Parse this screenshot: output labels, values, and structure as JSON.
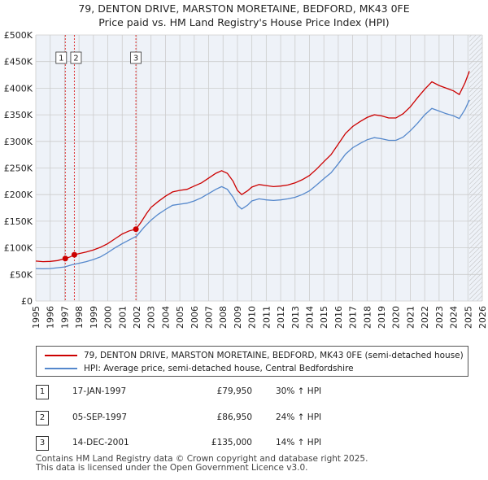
{
  "title": {
    "line1": "79, DENTON DRIVE, MARSTON MORETAINE, BEDFORD, MK43 0FE",
    "line2": "Price paid vs. HM Land Registry's House Price Index (HPI)"
  },
  "colors": {
    "property": "#cc0000",
    "hpi": "#5588cc",
    "grid": "#cccccc",
    "plot_bg": "#eef2f8",
    "marker_line": "#dd3333"
  },
  "chart_data": {
    "type": "line",
    "xlim": [
      1995,
      2026
    ],
    "ylim": [
      0,
      500000
    ],
    "x_ticks": [
      1995,
      1996,
      1997,
      1998,
      1999,
      2000,
      2001,
      2002,
      2003,
      2004,
      2005,
      2006,
      2007,
      2008,
      2009,
      2010,
      2011,
      2012,
      2013,
      2014,
      2015,
      2016,
      2017,
      2018,
      2019,
      2020,
      2021,
      2022,
      2023,
      2024,
      2025,
      2026
    ],
    "y_ticks": [
      {
        "value": 0,
        "label": "£0"
      },
      {
        "value": 50000,
        "label": "£50K"
      },
      {
        "value": 100000,
        "label": "£100K"
      },
      {
        "value": 150000,
        "label": "£150K"
      },
      {
        "value": 200000,
        "label": "£200K"
      },
      {
        "value": 250000,
        "label": "£250K"
      },
      {
        "value": 300000,
        "label": "£300K"
      },
      {
        "value": 350000,
        "label": "£350K"
      },
      {
        "value": 400000,
        "label": "£400K"
      },
      {
        "value": 450000,
        "label": "£450K"
      },
      {
        "value": 500000,
        "label": "£500K"
      }
    ],
    "grid": true,
    "hatch_after": 2025.1,
    "series": [
      {
        "name": "79, DENTON DRIVE, MARSTON MORETAINE, BEDFORD, MK43 0FE (semi-detached house)",
        "color": "#cc0000",
        "points": [
          [
            1995.0,
            75000
          ],
          [
            1995.5,
            74000
          ],
          [
            1996.0,
            74500
          ],
          [
            1996.5,
            76000
          ],
          [
            1997.05,
            79950
          ],
          [
            1997.4,
            83000
          ],
          [
            1997.68,
            86950
          ],
          [
            1998.0,
            89000
          ],
          [
            1998.5,
            92000
          ],
          [
            1999.0,
            96000
          ],
          [
            1999.5,
            101000
          ],
          [
            2000.0,
            108000
          ],
          [
            2000.5,
            117000
          ],
          [
            2001.0,
            126000
          ],
          [
            2001.5,
            132000
          ],
          [
            2001.95,
            135000
          ],
          [
            2002.3,
            148000
          ],
          [
            2002.7,
            165000
          ],
          [
            2003.0,
            176000
          ],
          [
            2003.5,
            187000
          ],
          [
            2004.0,
            197000
          ],
          [
            2004.5,
            205000
          ],
          [
            2005.0,
            208000
          ],
          [
            2005.5,
            210000
          ],
          [
            2006.0,
            216000
          ],
          [
            2006.5,
            222000
          ],
          [
            2007.0,
            231000
          ],
          [
            2007.5,
            240000
          ],
          [
            2007.9,
            245000
          ],
          [
            2008.3,
            240000
          ],
          [
            2008.7,
            225000
          ],
          [
            2009.0,
            208000
          ],
          [
            2009.3,
            200000
          ],
          [
            2009.7,
            207000
          ],
          [
            2010.0,
            214000
          ],
          [
            2010.5,
            219000
          ],
          [
            2011.0,
            217000
          ],
          [
            2011.5,
            215000
          ],
          [
            2012.0,
            216000
          ],
          [
            2012.5,
            218000
          ],
          [
            2013.0,
            222000
          ],
          [
            2013.5,
            228000
          ],
          [
            2014.0,
            236000
          ],
          [
            2014.5,
            248000
          ],
          [
            2015.0,
            262000
          ],
          [
            2015.5,
            275000
          ],
          [
            2016.0,
            295000
          ],
          [
            2016.5,
            315000
          ],
          [
            2017.0,
            328000
          ],
          [
            2017.5,
            337000
          ],
          [
            2018.0,
            345000
          ],
          [
            2018.5,
            350000
          ],
          [
            2019.0,
            348000
          ],
          [
            2019.5,
            344000
          ],
          [
            2020.0,
            344000
          ],
          [
            2020.5,
            352000
          ],
          [
            2021.0,
            365000
          ],
          [
            2021.5,
            382000
          ],
          [
            2022.0,
            398000
          ],
          [
            2022.5,
            412000
          ],
          [
            2023.0,
            405000
          ],
          [
            2023.5,
            400000
          ],
          [
            2024.0,
            395000
          ],
          [
            2024.4,
            388000
          ],
          [
            2024.8,
            410000
          ],
          [
            2025.1,
            432000
          ]
        ]
      },
      {
        "name": "HPI: Average price, semi-detached house, Central Bedfordshire",
        "color": "#5588cc",
        "points": [
          [
            1995.0,
            61000
          ],
          [
            1995.5,
            60500
          ],
          [
            1996.0,
            61000
          ],
          [
            1996.5,
            62500
          ],
          [
            1997.0,
            64000
          ],
          [
            1997.5,
            68000
          ],
          [
            1998.0,
            71000
          ],
          [
            1998.5,
            74000
          ],
          [
            1999.0,
            78000
          ],
          [
            1999.5,
            83000
          ],
          [
            2000.0,
            91000
          ],
          [
            2000.5,
            100000
          ],
          [
            2001.0,
            108000
          ],
          [
            2001.5,
            115000
          ],
          [
            2002.0,
            122000
          ],
          [
            2002.5,
            138000
          ],
          [
            2003.0,
            152000
          ],
          [
            2003.5,
            163000
          ],
          [
            2004.0,
            172000
          ],
          [
            2004.5,
            180000
          ],
          [
            2005.0,
            182000
          ],
          [
            2005.5,
            184000
          ],
          [
            2006.0,
            188000
          ],
          [
            2006.5,
            194000
          ],
          [
            2007.0,
            202000
          ],
          [
            2007.5,
            210000
          ],
          [
            2007.9,
            215000
          ],
          [
            2008.3,
            210000
          ],
          [
            2008.7,
            195000
          ],
          [
            2009.0,
            180000
          ],
          [
            2009.3,
            173000
          ],
          [
            2009.7,
            180000
          ],
          [
            2010.0,
            188000
          ],
          [
            2010.5,
            192000
          ],
          [
            2011.0,
            190000
          ],
          [
            2011.5,
            189000
          ],
          [
            2012.0,
            190000
          ],
          [
            2012.5,
            192000
          ],
          [
            2013.0,
            195000
          ],
          [
            2013.5,
            200000
          ],
          [
            2014.0,
            207000
          ],
          [
            2014.5,
            218000
          ],
          [
            2015.0,
            230000
          ],
          [
            2015.5,
            241000
          ],
          [
            2016.0,
            258000
          ],
          [
            2016.5,
            276000
          ],
          [
            2017.0,
            288000
          ],
          [
            2017.5,
            296000
          ],
          [
            2018.0,
            303000
          ],
          [
            2018.5,
            307000
          ],
          [
            2019.0,
            305000
          ],
          [
            2019.5,
            302000
          ],
          [
            2020.0,
            302000
          ],
          [
            2020.5,
            308000
          ],
          [
            2021.0,
            320000
          ],
          [
            2021.5,
            334000
          ],
          [
            2022.0,
            350000
          ],
          [
            2022.5,
            362000
          ],
          [
            2023.0,
            357000
          ],
          [
            2023.5,
            352000
          ],
          [
            2024.0,
            348000
          ],
          [
            2024.4,
            343000
          ],
          [
            2024.8,
            360000
          ],
          [
            2025.1,
            378000
          ]
        ]
      }
    ],
    "annotations": [
      {
        "label": "1",
        "x": 1997.05,
        "y": 79950
      },
      {
        "label": "2",
        "x": 1997.68,
        "y": 86950
      },
      {
        "label": "3",
        "x": 2001.95,
        "y": 135000
      }
    ]
  },
  "legend": {
    "property_label": "79, DENTON DRIVE, MARSTON MORETAINE, BEDFORD, MK43 0FE (semi-detached house)",
    "hpi_label": "HPI: Average price, semi-detached house, Central Bedfordshire"
  },
  "transactions": [
    {
      "num": "1",
      "date": "17-JAN-1997",
      "price": "£79,950",
      "hpi": "30% ↑ HPI"
    },
    {
      "num": "2",
      "date": "05-SEP-1997",
      "price": "£86,950",
      "hpi": "24% ↑ HPI"
    },
    {
      "num": "3",
      "date": "14-DEC-2001",
      "price": "£135,000",
      "hpi": "14% ↑ HPI"
    }
  ],
  "footer": {
    "line1": "Contains HM Land Registry data © Crown copyright and database right 2025.",
    "line2": "This data is licensed under the Open Government Licence v3.0."
  }
}
